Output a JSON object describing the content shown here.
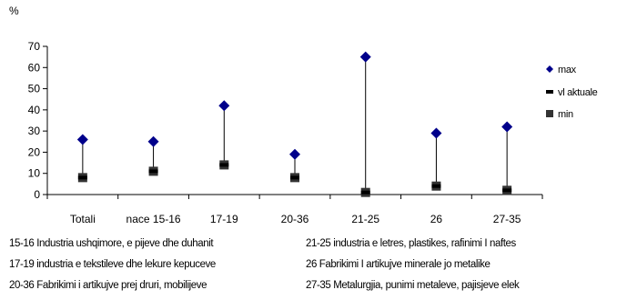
{
  "chart_data": {
    "type": "scatter",
    "y_unit_label": "%",
    "categories": [
      "Totali",
      "nace 15-16",
      "17-19",
      "20-36",
      "21-25",
      "26",
      "27-35"
    ],
    "ylim": [
      0,
      70
    ],
    "yticks": [
      0,
      10,
      20,
      30,
      40,
      50,
      60,
      70
    ],
    "grid": false,
    "legend_position": "right",
    "series": [
      {
        "name": "max",
        "marker": "diamond",
        "color": "#00008B",
        "values": [
          26,
          25,
          42,
          19,
          65,
          29,
          32
        ]
      },
      {
        "name": "vl aktuale",
        "marker": "dash",
        "color": "#000000",
        "values": [
          8,
          11,
          14,
          8,
          1,
          4,
          2
        ]
      },
      {
        "name": "min",
        "marker": "square",
        "color": "#333333",
        "values": [
          8,
          11,
          14,
          8,
          1,
          4,
          2
        ]
      }
    ]
  },
  "notes": [
    "15-16 Industria ushqimore, e pijeve dhe duhanit",
    "21-25 industria e letres, plastikes, rafinimi I naftes",
    "17-19 industria e tekstileve dhe lekure kepuceve",
    "26 Fabrikimi I artikujve minerale jo metalike",
    "20-36 Fabrikimi i artikujve prej druri, mobilijeve",
    "27-35 Metalurgjia, punimi metaleve, pajisjeve elek"
  ]
}
